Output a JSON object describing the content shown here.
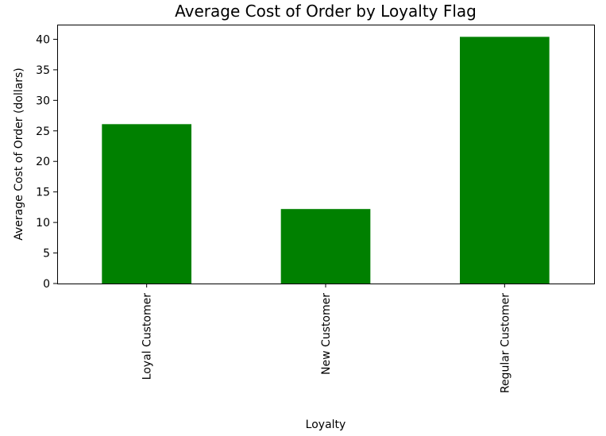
{
  "chart_data": {
    "type": "bar",
    "title": "Average Cost of Order by Loyalty Flag",
    "xlabel": "Loyalty",
    "ylabel": "Average Cost of Order (dollars)",
    "categories": [
      "Loyal Customer",
      "New Customer",
      "Regular Customer"
    ],
    "values": [
      26.1,
      12.2,
      40.4
    ],
    "ylim": [
      0,
      42.4
    ],
    "yticks": [
      0,
      5,
      10,
      15,
      20,
      25,
      30,
      35,
      40
    ],
    "xtick_rotation": 90,
    "bar_color": "#008000",
    "grid": false,
    "legend": false
  }
}
